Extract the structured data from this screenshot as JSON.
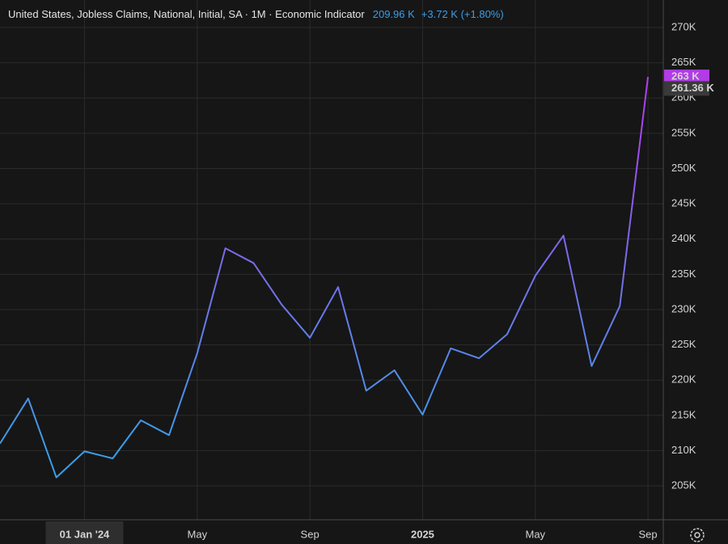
{
  "chart_data": {
    "type": "line",
    "title": "United States, Jobless Claims, National, Initial, SA · 1M · Economic Indicator",
    "header_value": "209.96 K",
    "header_change": "+3.72 K (+1.80%)",
    "categories": [
      null,
      null,
      null,
      "01 Jan '24",
      null,
      null,
      null,
      "May",
      null,
      null,
      null,
      "Sep",
      null,
      null,
      null,
      "2025",
      null,
      null,
      null,
      "May",
      null,
      null,
      null,
      "Sep"
    ],
    "series": [
      {
        "name": "Jobless Claims",
        "gradient": [
          "#3a9ee8",
          "#b040ee"
        ],
        "values": [
          211.0,
          217.4,
          206.2,
          209.9,
          208.9,
          214.3,
          212.2,
          223.8,
          238.7,
          236.6,
          230.7,
          226.0,
          233.2,
          218.5,
          221.4,
          215.1,
          224.5,
          223.1,
          226.5,
          234.8,
          240.5,
          222.0,
          230.5,
          263.0
        ]
      }
    ],
    "ylim": [
      200.2,
      273.9
    ],
    "yticks": [
      {
        "value": 205,
        "label": "205K"
      },
      {
        "value": 210,
        "label": "210K"
      },
      {
        "value": 215,
        "label": "215K"
      },
      {
        "value": 220,
        "label": "220K"
      },
      {
        "value": 225,
        "label": "225K"
      },
      {
        "value": 230,
        "label": "230K"
      },
      {
        "value": 235,
        "label": "235K"
      },
      {
        "value": 240,
        "label": "240K"
      },
      {
        "value": 245,
        "label": "245K"
      },
      {
        "value": 250,
        "label": "250K"
      },
      {
        "value": 255,
        "label": "255K"
      },
      {
        "value": 260,
        "label": "260K"
      },
      {
        "value": 265,
        "label": "265K"
      },
      {
        "value": 270,
        "label": "270K"
      }
    ],
    "price_labels": [
      {
        "value": 263,
        "label": "263 K",
        "color": "#b23be6"
      },
      {
        "value": 261.36,
        "label": "261.36 K",
        "color": "#3a3a3a"
      }
    ],
    "grid": true
  }
}
